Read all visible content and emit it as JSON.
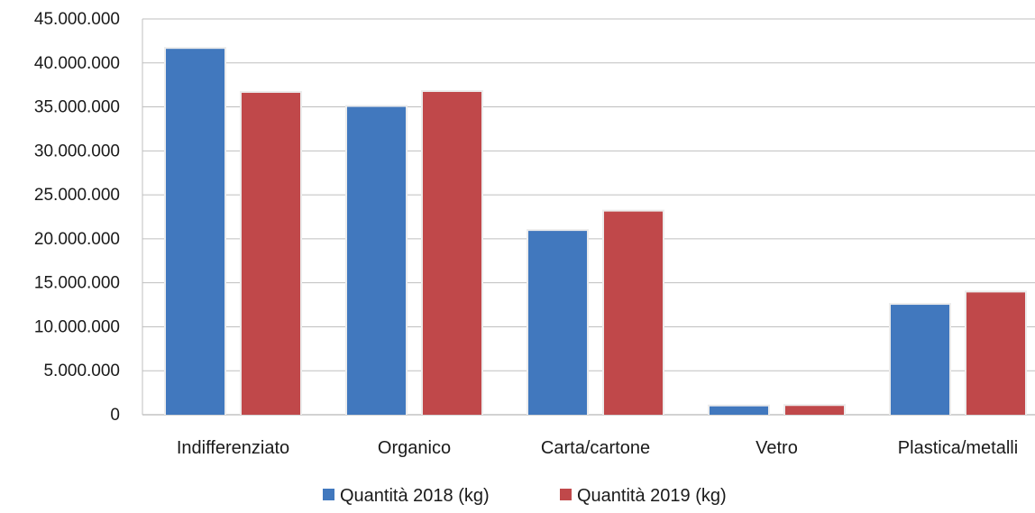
{
  "chart_data": {
    "type": "bar",
    "title": "",
    "xlabel": "",
    "ylabel": "",
    "categories": [
      "Indifferenziato",
      "Organico",
      "Carta/cartone",
      "Vetro",
      "Plastica/metalli"
    ],
    "series": [
      {
        "name": "Quantità 2018 (kg)",
        "color": "#4178BE",
        "values": [
          41600000,
          35000000,
          20900000,
          950000,
          12500000
        ]
      },
      {
        "name": "Quantità 2019 (kg)",
        "color": "#C0484A",
        "values": [
          36600000,
          36700000,
          23100000,
          1000000,
          13900000
        ]
      }
    ],
    "ylim": [
      0,
      45000000
    ],
    "yticks": [
      "0",
      "5.000.000",
      "10.000.000",
      "15.000.000",
      "20.000.000",
      "25.000.000",
      "30.000.000",
      "35.000.000",
      "40.000.000",
      "45.000.000"
    ],
    "grid": true,
    "legend": "bottom"
  }
}
